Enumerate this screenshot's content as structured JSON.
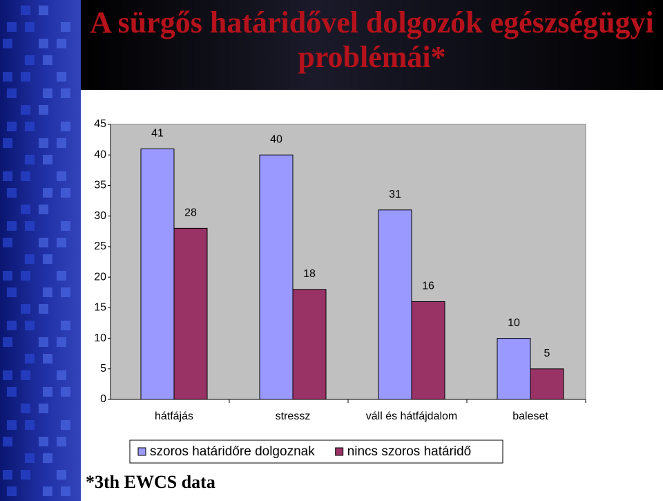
{
  "chart_data": {
    "type": "bar",
    "title": "A sürgős határidővel dolgozók egészségügyi problémái*",
    "footnote": "*3th EWCS data",
    "categories": [
      "hátfájás",
      "stressz",
      "váll és hátfájdalom",
      "baleset"
    ],
    "series": [
      {
        "name": "szoros határidőre dolgoznak",
        "color": "#9999ff",
        "values": [
          41,
          40,
          31,
          10
        ]
      },
      {
        "name": "nincs szoros határidő",
        "color": "#993366",
        "values": [
          28,
          18,
          16,
          5
        ]
      }
    ],
    "ylim": [
      0,
      45
    ],
    "yticks": [
      0,
      5,
      10,
      15,
      20,
      25,
      30,
      35,
      40,
      45
    ],
    "grid": false,
    "plot_background": "#c0c0c0"
  }
}
